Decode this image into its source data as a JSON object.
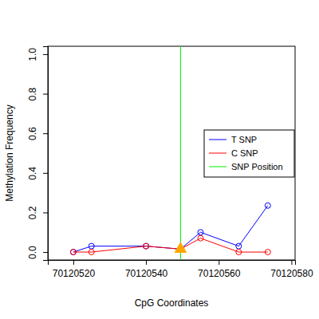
{
  "chart_data": {
    "type": "line",
    "x_label": "CpG Coordinates",
    "y_label": "Methylation Frequency",
    "xlim": [
      70120513,
      70120581
    ],
    "xticks": [
      70120520,
      70120540,
      70120560,
      70120580
    ],
    "ylim": [
      -0.04,
      1.04
    ],
    "yticks": [
      {
        "value": 0,
        "label": "0.0"
      },
      {
        "value": 0.2,
        "label": "0.2"
      },
      {
        "value": 0.4,
        "label": "0.4"
      },
      {
        "value": 0.6,
        "label": "0.6"
      },
      {
        "value": 0.8,
        "label": "0.8"
      },
      {
        "value": 1,
        "label": "1.0"
      }
    ],
    "legend": "right",
    "series": [
      {
        "name": "T SNP",
        "color": "#0000ff",
        "marker": "circle",
        "x": [
          70120520,
          70120525,
          70120540,
          70120549.5,
          70120555,
          70120565.5,
          70120573.5
        ],
        "values": [
          0.0,
          0.03,
          0.03,
          0.015,
          0.1,
          0.03,
          0.235
        ]
      },
      {
        "name": "C SNP",
        "color": "#ff0000",
        "marker": "circle",
        "x": [
          70120520,
          70120525,
          70120540,
          70120549.5,
          70120555,
          70120565.5,
          70120573.5
        ],
        "values": [
          0.0,
          0.0,
          0.03,
          0.015,
          0.07,
          0.0,
          0.0
        ]
      },
      {
        "name": "SNP Position",
        "color": "#00ee00",
        "type": "vline",
        "x": [
          70120549.5
        ]
      }
    ],
    "snp_point": {
      "x": 70120549.5,
      "y": 0.015,
      "color": "#ffa500",
      "marker": "triangle"
    }
  }
}
